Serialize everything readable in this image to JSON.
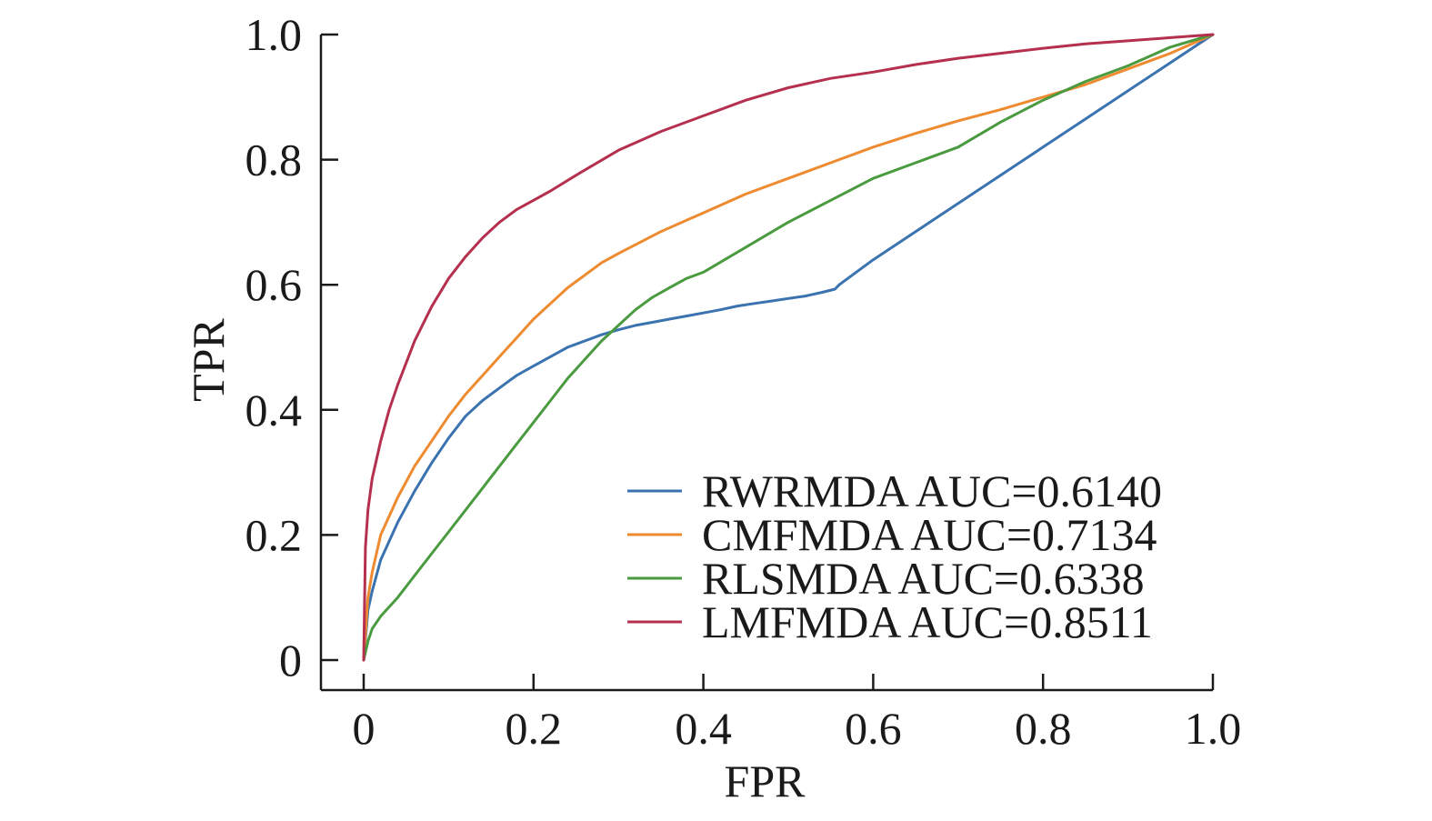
{
  "chart_data": {
    "type": "line",
    "title": "",
    "xlabel": "FPR",
    "ylabel": "TPR",
    "xlim": [
      0,
      1
    ],
    "ylim": [
      0,
      1
    ],
    "grid": false,
    "legend_position": "bottom-right",
    "x_ticks": [
      0,
      0.2,
      0.4,
      0.6,
      0.8,
      1.0
    ],
    "x_tick_labels": [
      "0",
      "0.2",
      "0.4",
      "0.6",
      "0.8",
      "1.0"
    ],
    "y_ticks": [
      0,
      0.2,
      0.4,
      0.6,
      0.8,
      1.0
    ],
    "y_tick_labels": [
      "0",
      "0.2",
      "0.4",
      "0.6",
      "0.8",
      "1.0"
    ],
    "series": [
      {
        "name": "RWRMDA AUC=0.6140",
        "color": "#3a73b0",
        "x": [
          0,
          0.005,
          0.01,
          0.02,
          0.04,
          0.06,
          0.08,
          0.1,
          0.12,
          0.14,
          0.16,
          0.18,
          0.2,
          0.22,
          0.24,
          0.26,
          0.28,
          0.3,
          0.32,
          0.34,
          0.36,
          0.38,
          0.4,
          0.42,
          0.44,
          0.46,
          0.48,
          0.5,
          0.52,
          0.54,
          0.555,
          0.56,
          0.6,
          0.7,
          0.8,
          0.9,
          1.0
        ],
        "y": [
          0,
          0.08,
          0.11,
          0.16,
          0.22,
          0.27,
          0.315,
          0.355,
          0.39,
          0.415,
          0.435,
          0.455,
          0.47,
          0.485,
          0.5,
          0.51,
          0.52,
          0.528,
          0.535,
          0.54,
          0.545,
          0.55,
          0.555,
          0.56,
          0.566,
          0.57,
          0.574,
          0.578,
          0.582,
          0.588,
          0.593,
          0.6,
          0.64,
          0.73,
          0.82,
          0.91,
          1.0
        ]
      },
      {
        "name": "CMFMDA AUC=0.7134",
        "color": "#ee8a2f",
        "x": [
          0,
          0.005,
          0.01,
          0.02,
          0.04,
          0.06,
          0.08,
          0.1,
          0.12,
          0.14,
          0.16,
          0.18,
          0.2,
          0.22,
          0.24,
          0.26,
          0.28,
          0.3,
          0.35,
          0.4,
          0.45,
          0.5,
          0.55,
          0.6,
          0.65,
          0.7,
          0.75,
          0.8,
          0.85,
          0.9,
          0.95,
          1.0
        ],
        "y": [
          0,
          0.1,
          0.14,
          0.2,
          0.26,
          0.31,
          0.35,
          0.39,
          0.425,
          0.455,
          0.485,
          0.515,
          0.545,
          0.57,
          0.595,
          0.615,
          0.635,
          0.65,
          0.685,
          0.715,
          0.745,
          0.77,
          0.795,
          0.82,
          0.842,
          0.862,
          0.88,
          0.9,
          0.92,
          0.945,
          0.97,
          1.0
        ]
      },
      {
        "name": "RLSMDA AUC=0.6338",
        "color": "#4a9a40",
        "x": [
          0,
          0.005,
          0.01,
          0.02,
          0.04,
          0.06,
          0.08,
          0.1,
          0.12,
          0.14,
          0.16,
          0.18,
          0.2,
          0.22,
          0.24,
          0.26,
          0.28,
          0.3,
          0.32,
          0.34,
          0.36,
          0.38,
          0.4,
          0.45,
          0.5,
          0.55,
          0.6,
          0.65,
          0.7,
          0.75,
          0.8,
          0.85,
          0.9,
          0.95,
          1.0
        ],
        "y": [
          0,
          0.03,
          0.05,
          0.07,
          0.1,
          0.135,
          0.17,
          0.205,
          0.24,
          0.275,
          0.31,
          0.345,
          0.38,
          0.415,
          0.45,
          0.48,
          0.51,
          0.535,
          0.56,
          0.58,
          0.595,
          0.61,
          0.62,
          0.66,
          0.7,
          0.735,
          0.77,
          0.795,
          0.82,
          0.86,
          0.895,
          0.925,
          0.95,
          0.98,
          1.0
        ]
      },
      {
        "name": "LMFMDA AUC=0.8511",
        "color": "#b5304f",
        "x": [
          0,
          0.002,
          0.005,
          0.01,
          0.02,
          0.03,
          0.04,
          0.05,
          0.06,
          0.08,
          0.1,
          0.12,
          0.14,
          0.16,
          0.18,
          0.2,
          0.22,
          0.25,
          0.3,
          0.35,
          0.4,
          0.45,
          0.5,
          0.55,
          0.6,
          0.65,
          0.7,
          0.75,
          0.8,
          0.85,
          0.9,
          0.95,
          1.0
        ],
        "y": [
          0,
          0.18,
          0.24,
          0.29,
          0.35,
          0.4,
          0.44,
          0.475,
          0.51,
          0.565,
          0.61,
          0.645,
          0.675,
          0.7,
          0.72,
          0.735,
          0.75,
          0.775,
          0.815,
          0.845,
          0.87,
          0.895,
          0.915,
          0.93,
          0.94,
          0.952,
          0.962,
          0.97,
          0.978,
          0.985,
          0.99,
          0.995,
          1.0
        ]
      }
    ]
  }
}
